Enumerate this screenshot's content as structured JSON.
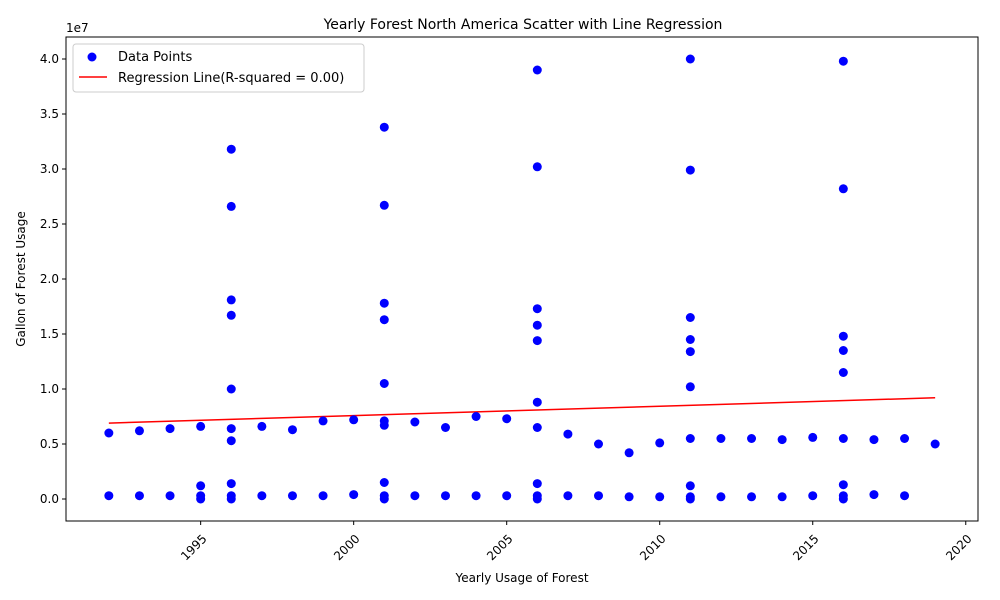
{
  "chart_data": {
    "type": "scatter",
    "title": "Yearly Forest North America Scatter with Line Regression",
    "xlabel": "Yearly Usage of Forest",
    "ylabel": "Gallon of Forest Usage",
    "y_offset_label": "1e7",
    "xlim": [
      1990.6,
      2020.4
    ],
    "ylim": [
      -2000000,
      42000000
    ],
    "x_ticks": [
      1995,
      2000,
      2005,
      2010,
      2015,
      2020
    ],
    "x_tick_labels": [
      "1995",
      "2000",
      "2005",
      "2010",
      "2015",
      "2020"
    ],
    "y_ticks": [
      0,
      5000000,
      10000000,
      15000000,
      20000000,
      25000000,
      30000000,
      35000000,
      40000000
    ],
    "y_tick_labels": [
      "0.0",
      "0.5",
      "1.0",
      "1.5",
      "2.0",
      "2.5",
      "3.0",
      "3.5",
      "4.0"
    ],
    "grid": false,
    "legend": {
      "placement": "top-left",
      "entries": [
        "Data Points",
        "Regression Line(R-squared = 0.00)"
      ]
    },
    "colors": {
      "points": "#0000ff",
      "regression": "#ff0000"
    },
    "series": [
      {
        "name": "Data Points",
        "points": [
          [
            1992,
            6000000
          ],
          [
            1992,
            300000
          ],
          [
            1993,
            6200000
          ],
          [
            1993,
            300000
          ],
          [
            1994,
            6400000
          ],
          [
            1994,
            300000
          ],
          [
            1995,
            6600000
          ],
          [
            1995,
            1200000
          ],
          [
            1995,
            300000
          ],
          [
            1995,
            0
          ],
          [
            1996,
            31800000
          ],
          [
            1996,
            26600000
          ],
          [
            1996,
            18100000
          ],
          [
            1996,
            16700000
          ],
          [
            1996,
            10000000
          ],
          [
            1996,
            6400000
          ],
          [
            1996,
            5300000
          ],
          [
            1996,
            1400000
          ],
          [
            1996,
            300000
          ],
          [
            1996,
            0
          ],
          [
            1997,
            6600000
          ],
          [
            1997,
            300000
          ],
          [
            1998,
            6300000
          ],
          [
            1998,
            300000
          ],
          [
            1999,
            7100000
          ],
          [
            1999,
            300000
          ],
          [
            2000,
            7200000
          ],
          [
            2000,
            400000
          ],
          [
            2001,
            33800000
          ],
          [
            2001,
            26700000
          ],
          [
            2001,
            17800000
          ],
          [
            2001,
            16300000
          ],
          [
            2001,
            10500000
          ],
          [
            2001,
            7100000
          ],
          [
            2001,
            6700000
          ],
          [
            2001,
            1500000
          ],
          [
            2001,
            300000
          ],
          [
            2001,
            0
          ],
          [
            2002,
            7000000
          ],
          [
            2002,
            300000
          ],
          [
            2003,
            6500000
          ],
          [
            2003,
            300000
          ],
          [
            2004,
            7500000
          ],
          [
            2004,
            300000
          ],
          [
            2005,
            7300000
          ],
          [
            2005,
            300000
          ],
          [
            2006,
            39000000
          ],
          [
            2006,
            30200000
          ],
          [
            2006,
            17300000
          ],
          [
            2006,
            15800000
          ],
          [
            2006,
            14400000
          ],
          [
            2006,
            8800000
          ],
          [
            2006,
            6500000
          ],
          [
            2006,
            1400000
          ],
          [
            2006,
            300000
          ],
          [
            2006,
            0
          ],
          [
            2007,
            5900000
          ],
          [
            2007,
            300000
          ],
          [
            2008,
            5000000
          ],
          [
            2008,
            300000
          ],
          [
            2009,
            4200000
          ],
          [
            2009,
            200000
          ],
          [
            2010,
            5100000
          ],
          [
            2010,
            200000
          ],
          [
            2011,
            40000000
          ],
          [
            2011,
            29900000
          ],
          [
            2011,
            16500000
          ],
          [
            2011,
            14500000
          ],
          [
            2011,
            13400000
          ],
          [
            2011,
            10200000
          ],
          [
            2011,
            5500000
          ],
          [
            2011,
            1200000
          ],
          [
            2011,
            200000
          ],
          [
            2011,
            0
          ],
          [
            2012,
            5500000
          ],
          [
            2012,
            200000
          ],
          [
            2013,
            5500000
          ],
          [
            2013,
            200000
          ],
          [
            2014,
            5400000
          ],
          [
            2014,
            200000
          ],
          [
            2015,
            5600000
          ],
          [
            2015,
            300000
          ],
          [
            2016,
            39800000
          ],
          [
            2016,
            28200000
          ],
          [
            2016,
            14800000
          ],
          [
            2016,
            13500000
          ],
          [
            2016,
            11500000
          ],
          [
            2016,
            5500000
          ],
          [
            2016,
            1300000
          ],
          [
            2016,
            300000
          ],
          [
            2016,
            0
          ],
          [
            2017,
            5400000
          ],
          [
            2017,
            400000
          ],
          [
            2018,
            5500000
          ],
          [
            2018,
            300000
          ],
          [
            2019,
            5000000
          ]
        ]
      },
      {
        "name": "Regression Line(R-squared = 0.00)",
        "line": [
          [
            1992,
            6900000
          ],
          [
            2019,
            9200000
          ]
        ]
      }
    ]
  }
}
